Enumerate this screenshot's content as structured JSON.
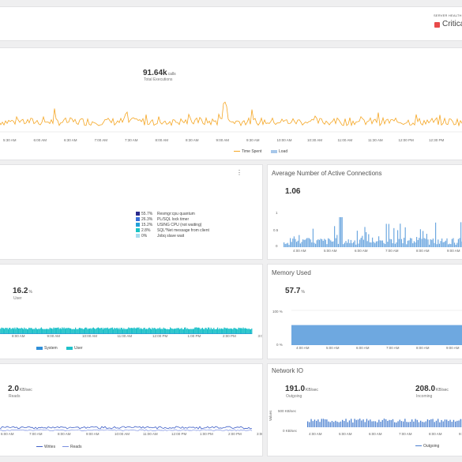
{
  "server_health": {
    "label": "SERVER HEALTH",
    "status": "Critica",
    "color": "#e84a4a"
  },
  "executions": {
    "value": "91.64k",
    "unit": "calls",
    "label": "Total Executions",
    "x_ticks": [
      "5:30 AM",
      "6:00 AM",
      "6:30 AM",
      "7:00 AM",
      "7:30 AM",
      "8:00 AM",
      "8:30 AM",
      "9:00 AM",
      "9:30 AM",
      "10:00 AM",
      "10:30 AM",
      "11:00 AM",
      "11:30 AM",
      "12:00 PM",
      "12:30 PM"
    ],
    "legend": [
      "Time Spent",
      "Load"
    ],
    "colors": {
      "time_spent": "#f5a623",
      "load": "#a7c7ea"
    }
  },
  "wait_panel": {
    "menu": "⋮",
    "items": [
      {
        "pct": "55.7%",
        "label": "Resmgr:cpu quantum",
        "color": "#2a2a8c"
      },
      {
        "pct": "26.3%",
        "label": "PL/SQL lock timer",
        "color": "#3a6fd8"
      },
      {
        "pct": "15.2%",
        "label": "USING CPU (not waiting)",
        "color": "#23a0d8"
      },
      {
        "pct": "2.8%",
        "label": "SQL*Net message from client",
        "color": "#19c4c4"
      },
      {
        "pct": "0%",
        "label": "Jobq slave wait",
        "color": "#a8dcef"
      }
    ]
  },
  "connections": {
    "title": "Average Number of Active Connections",
    "value": "1.06",
    "y_ticks": [
      "1",
      "0.5",
      "0"
    ],
    "x_ticks": [
      "4:00 AM",
      "5:00 AM",
      "6:00 AM",
      "7:00 AM",
      "8:00 AM",
      "9:00 AM"
    ],
    "color": "#6ea8e0"
  },
  "cpu": {
    "value": "16.2",
    "unit": "%",
    "label": "User",
    "x_ticks": [
      "8:00 AM",
      "9:00 AM",
      "10:00 AM",
      "11:00 AM",
      "12:00 PM",
      "1:00 PM",
      "2:00 PM",
      "3:00 PM"
    ],
    "legend": [
      "System",
      "User"
    ],
    "colors": {
      "system": "#2f8fd8",
      "user": "#1fc1c9"
    }
  },
  "memory": {
    "title": "Memory Used",
    "value": "57.7",
    "unit": "%",
    "y_ticks": [
      "100 %",
      "0 %"
    ],
    "x_ticks": [
      "4:00 AM",
      "5:00 AM",
      "6:00 AM",
      "7:00 AM",
      "8:00 AM",
      "9:00 AM"
    ],
    "level_pct": 57.7,
    "color": "#6ea8e0"
  },
  "disk_io": {
    "value": "2.0",
    "unit": "KB/sec",
    "label": "Reads",
    "x_ticks": [
      "6:00 AM",
      "7:00 AM",
      "8:00 AM",
      "9:00 AM",
      "10:00 AM",
      "11:00 AM",
      "12:00 PM",
      "1:00 PM",
      "2:00 PM",
      "3:00 PM"
    ],
    "legend": [
      "Writes",
      "Reads"
    ],
    "colors": {
      "writes": "#3f5fc8",
      "reads": "#7b8fe0"
    }
  },
  "network": {
    "title": "Network IO",
    "outgoing": {
      "value": "191.0",
      "unit": "KB/sec",
      "label": "Outgoing"
    },
    "incoming": {
      "value": "208.0",
      "unit": "KB/sec",
      "label": "Incoming"
    },
    "y_ticks": [
      "500 KB/sec",
      "0 KB/sec"
    ],
    "y_axis_label": "Values",
    "x_ticks": [
      "4:00 AM",
      "5:00 AM",
      "6:00 AM",
      "7:00 AM",
      "8:00 AM",
      "9:00 AM"
    ],
    "legend": [
      "Outgoing"
    ],
    "color": "#4a7fd0"
  }
}
